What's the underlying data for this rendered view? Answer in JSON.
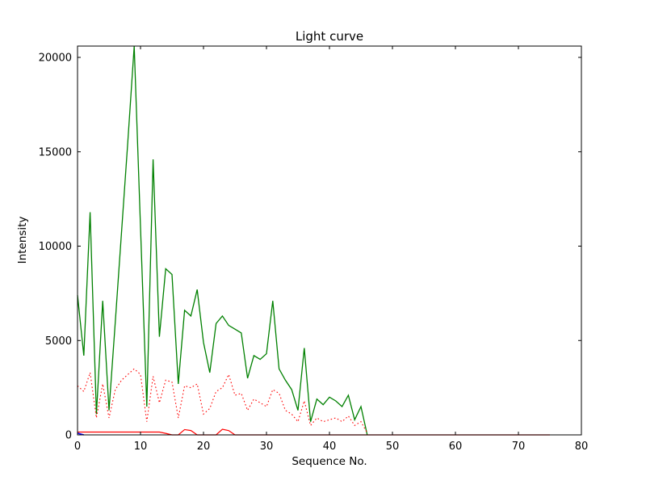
{
  "figure": {
    "background": "#ffffff",
    "frame_color": "#000000",
    "text_color": "#000000"
  },
  "chart_data": {
    "type": "line",
    "title": "Light curve",
    "xlabel": "Sequence No.",
    "ylabel": "Intensity",
    "xlim": [
      0,
      80
    ],
    "ylim": [
      0,
      20600
    ],
    "xticks": [
      0,
      10,
      20,
      30,
      40,
      50,
      60,
      70,
      80
    ],
    "yticks": [
      0,
      5000,
      10000,
      15000,
      20000
    ],
    "grid": false,
    "legend": null,
    "series": [
      {
        "name": "green-solid-series",
        "color": "#008000",
        "style": "solid",
        "width": 1.3,
        "x": [
          0,
          1,
          2,
          3,
          4,
          5,
          6,
          7,
          8,
          9,
          10,
          11,
          12,
          13,
          14,
          15,
          16,
          17,
          18,
          19,
          20,
          21,
          22,
          23,
          24,
          25,
          26,
          27,
          28,
          29,
          30,
          31,
          32,
          33,
          34,
          35,
          36,
          37,
          38,
          39,
          40,
          41,
          42,
          43,
          44,
          45,
          46
        ],
        "y": [
          7400,
          4200,
          11800,
          1100,
          7100,
          1300,
          6000,
          10800,
          15600,
          20600,
          11000,
          1500,
          14600,
          5200,
          8800,
          8500,
          2700,
          6600,
          6300,
          7700,
          4900,
          3300,
          5900,
          6300,
          5800,
          5600,
          5400,
          3000,
          4200,
          4000,
          4300,
          7100,
          3500,
          2900,
          2400,
          1300,
          4600,
          700,
          1900,
          1600,
          2000,
          1800,
          1500,
          2100,
          800,
          1500,
          0
        ]
      },
      {
        "name": "red-dotted-series",
        "color": "#ff0000",
        "style": "dotted",
        "width": 1.1,
        "x": [
          0,
          1,
          2,
          3,
          4,
          5,
          6,
          7,
          8,
          9,
          10,
          11,
          12,
          13,
          14,
          15,
          16,
          17,
          18,
          19,
          20,
          21,
          22,
          23,
          24,
          25,
          26,
          27,
          28,
          29,
          30,
          31,
          32,
          33,
          34,
          35,
          36,
          37,
          38,
          39,
          40,
          41,
          42,
          43,
          44,
          45,
          46
        ],
        "y": [
          2600,
          2300,
          3300,
          900,
          2700,
          900,
          2400,
          2900,
          3200,
          3500,
          3200,
          700,
          3100,
          1700,
          2900,
          2800,
          900,
          2600,
          2500,
          2700,
          1100,
          1400,
          2300,
          2500,
          3200,
          2100,
          2200,
          1300,
          1900,
          1700,
          1500,
          2400,
          2200,
          1300,
          1100,
          700,
          1800,
          500,
          900,
          700,
          800,
          900,
          700,
          1000,
          500,
          700,
          100
        ]
      },
      {
        "name": "red-solid-series",
        "color": "#ff0000",
        "style": "solid",
        "width": 1.2,
        "x": [
          0,
          1,
          2,
          3,
          4,
          5,
          6,
          7,
          8,
          9,
          10,
          11,
          12,
          13,
          14,
          15,
          16,
          17,
          18,
          19,
          20,
          21,
          22,
          23,
          24,
          25,
          26,
          27,
          28,
          29,
          30,
          31,
          32,
          33,
          34,
          35,
          36,
          37,
          38,
          39,
          40,
          41,
          42,
          43,
          44,
          45,
          46,
          47,
          48,
          49,
          50,
          51,
          52,
          53,
          54,
          55,
          56,
          57,
          58,
          59,
          60,
          61,
          62,
          63,
          64,
          65,
          66,
          67,
          68,
          69,
          70,
          71,
          72,
          73,
          74,
          75
        ],
        "y": [
          150,
          150,
          150,
          150,
          150,
          150,
          150,
          150,
          150,
          150,
          150,
          150,
          150,
          150,
          80,
          0,
          0,
          280,
          230,
          0,
          0,
          0,
          0,
          300,
          230,
          0,
          0,
          0,
          0,
          0,
          0,
          0,
          0,
          0,
          0,
          0,
          0,
          0,
          0,
          0,
          0,
          0,
          0,
          0,
          0,
          0,
          0,
          0,
          0,
          0,
          0,
          0,
          0,
          0,
          0,
          0,
          0,
          0,
          0,
          0,
          0,
          0,
          0,
          0,
          0,
          0,
          0,
          0,
          0,
          0,
          0,
          0,
          0,
          0,
          0,
          0
        ]
      },
      {
        "name": "blue-solid-series",
        "color": "#0000ff",
        "style": "solid",
        "width": 1.5,
        "x": [
          0,
          1
        ],
        "y": [
          90,
          0
        ]
      }
    ]
  }
}
